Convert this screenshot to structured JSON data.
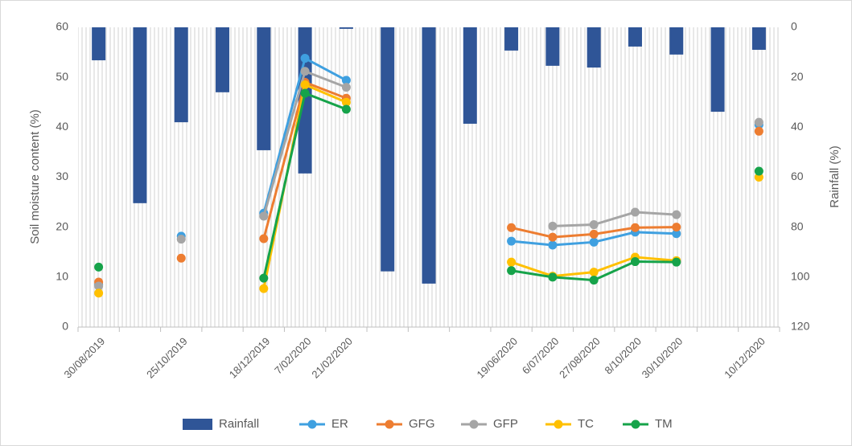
{
  "chart_data": {
    "type": "combo",
    "ylabel": "Soil moisture content (%)",
    "y2label": "Rainfall (%)",
    "categories": [
      "30/08/2019",
      null,
      "25/10/2019",
      null,
      "18/12/2019",
      "7/02/2020",
      "21/02/2020",
      null,
      null,
      null,
      "19/06/2020",
      "6/07/2020",
      "27/08/2020",
      "8/10/2020",
      "30/10/2020",
      null,
      "10/12/2020"
    ],
    "ylim": [
      0,
      60
    ],
    "yticks": [
      0,
      10,
      20,
      30,
      40,
      50,
      60
    ],
    "y2lim": [
      0,
      120
    ],
    "y2ticks": [
      0,
      20,
      40,
      60,
      80,
      100,
      120
    ],
    "y2_inverted": true,
    "legend": "bottom",
    "series": [
      {
        "name": "Rainfall",
        "type": "bar",
        "axis": "y2",
        "color": "#2f5597",
        "values": [
          13.2,
          70.4,
          38,
          26,
          49.2,
          58.5,
          0.6,
          97.7,
          102.6,
          38.6,
          9.3,
          15.4,
          16.1,
          7.7,
          10.9,
          33.8,
          9
        ]
      },
      {
        "name": "ER",
        "type": "line",
        "color": "#3fa0e0",
        "values": [
          8.5,
          null,
          18.2,
          null,
          22.8,
          53.8,
          49.4,
          null,
          null,
          null,
          17.2,
          16.4,
          17,
          19,
          18.7,
          null,
          40.5
        ]
      },
      {
        "name": "GFG",
        "type": "line",
        "color": "#ed7d31",
        "values": [
          9,
          null,
          13.8,
          null,
          17.7,
          49,
          45.8,
          null,
          null,
          null,
          19.9,
          18,
          18.6,
          19.9,
          20,
          null,
          39.2
        ]
      },
      {
        "name": "GFP",
        "type": "line",
        "color": "#a5a5a5",
        "values": [
          8.2,
          null,
          17.6,
          null,
          22.2,
          51.2,
          48,
          null,
          null,
          null,
          null,
          20.2,
          20.5,
          23,
          22.5,
          null,
          41
        ]
      },
      {
        "name": "TC",
        "type": "line",
        "color": "#ffc000",
        "values": [
          6.8,
          null,
          null,
          null,
          7.7,
          48.5,
          45,
          null,
          null,
          null,
          13,
          10.2,
          11,
          14,
          13.3,
          null,
          30
        ]
      },
      {
        "name": "TM",
        "type": "line",
        "color": "#16a34a",
        "values": [
          12,
          null,
          null,
          null,
          9.8,
          46.8,
          43.6,
          null,
          null,
          null,
          11.3,
          10,
          9.4,
          13.1,
          13,
          null,
          31.2
        ]
      }
    ]
  }
}
